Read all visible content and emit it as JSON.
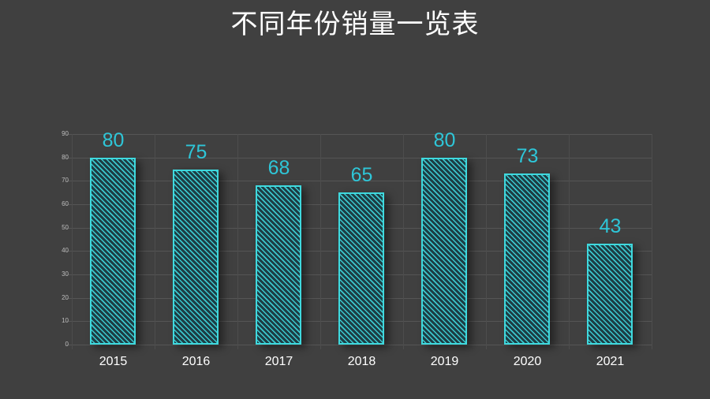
{
  "title": "不同年份销量一览表",
  "colors": {
    "background": "#404040",
    "bar_border": "#3fd9de",
    "value_label": "#2ec6d8",
    "title": "#ffffff",
    "axis_text": "#bdbdbd"
  },
  "chart_data": {
    "type": "bar",
    "title": "不同年份销量一览表",
    "xlabel": "",
    "ylabel": "",
    "categories": [
      "2015",
      "2016",
      "2017",
      "2018",
      "2019",
      "2020",
      "2021"
    ],
    "values": [
      80,
      75,
      68,
      65,
      80,
      73,
      43
    ],
    "data_labels": [
      "80",
      "75",
      "68",
      "65",
      "80",
      "73",
      "43"
    ],
    "ylim": [
      0,
      90
    ],
    "yticks": [
      "0",
      "10",
      "20",
      "30",
      "40",
      "50",
      "60",
      "70",
      "80",
      "90"
    ],
    "grid": true,
    "legend": null,
    "bar_style": "hatched diagonal fill with cyan outline"
  }
}
